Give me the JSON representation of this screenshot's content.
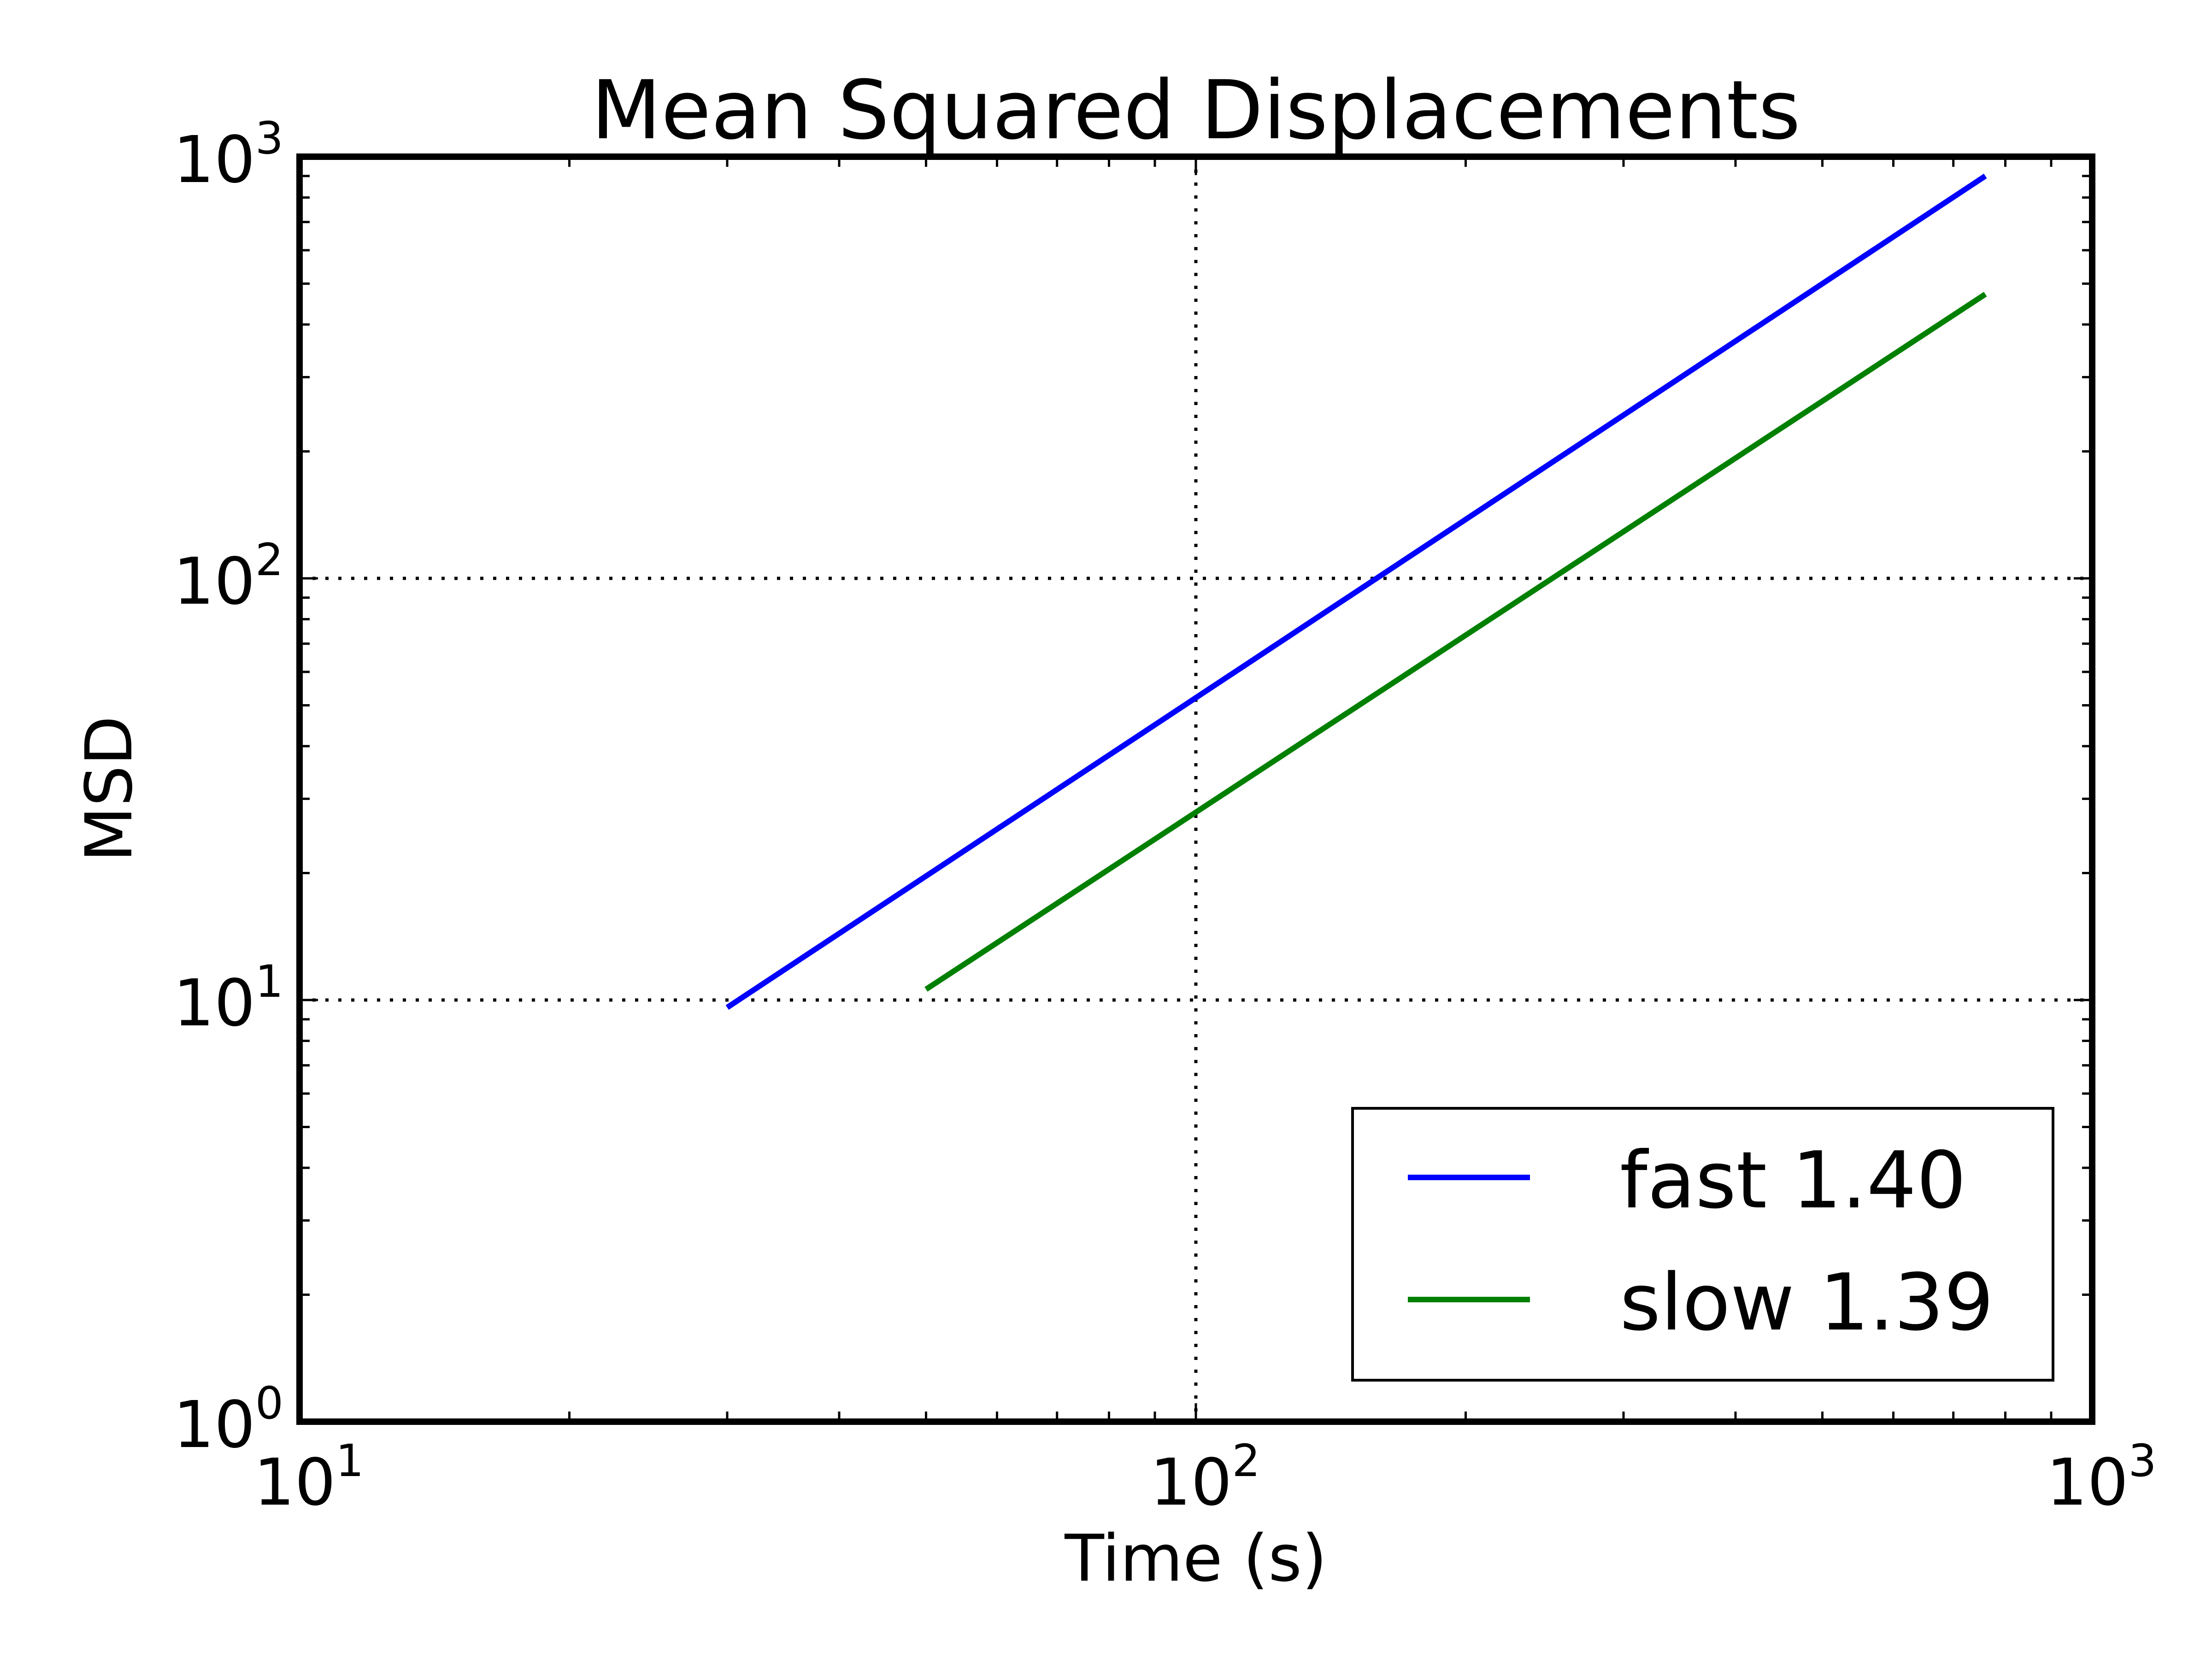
{
  "chart_data": {
    "type": "line",
    "title": "Mean Squared Displacements",
    "xlabel": "Time (s)",
    "ylabel": "MSD",
    "xscale": "log",
    "yscale": "log",
    "xlim": [
      10,
      1000
    ],
    "ylim": [
      1,
      1000
    ],
    "grid": true,
    "legend_position": "lower-right",
    "x_ticks": [
      {
        "base": "10",
        "exp": "1",
        "value": 10
      },
      {
        "base": "10",
        "exp": "2",
        "value": 100
      },
      {
        "base": "10",
        "exp": "3",
        "value": 1000
      }
    ],
    "y_ticks": [
      {
        "base": "10",
        "exp": "0",
        "value": 1
      },
      {
        "base": "10",
        "exp": "1",
        "value": 10
      },
      {
        "base": "10",
        "exp": "2",
        "value": 100
      },
      {
        "base": "10",
        "exp": "3",
        "value": 1000
      }
    ],
    "series": [
      {
        "name": "fast 1.40",
        "color": "#0000ff",
        "x": [
          30,
          760
        ],
        "y": [
          9.6,
          900
        ]
      },
      {
        "name": "slow 1.39",
        "color": "#008000",
        "x": [
          50,
          760
        ],
        "y": [
          10.6,
          472
        ]
      }
    ]
  }
}
